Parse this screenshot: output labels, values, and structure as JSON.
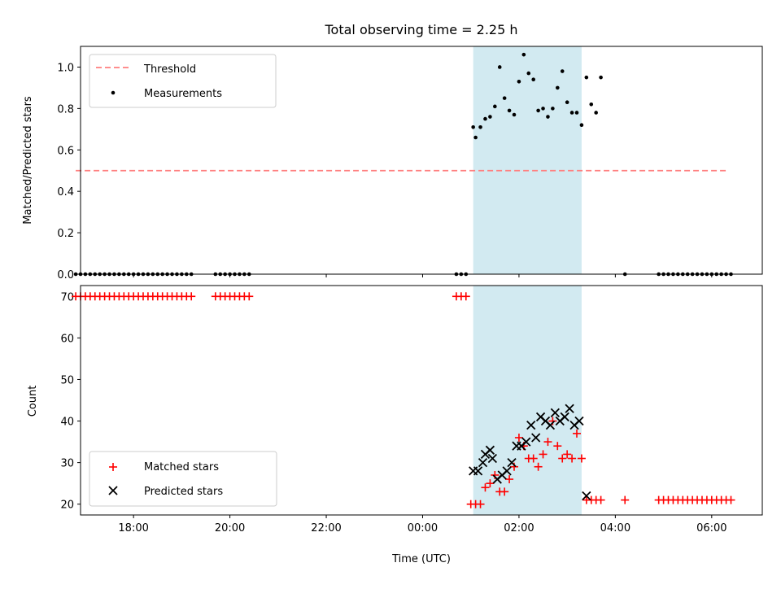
{
  "chart_data": [
    {
      "type": "scatter",
      "title": "Total observing time = 2.25 h",
      "xlabel": "",
      "ylabel": "Matched/Predicted stars",
      "ylim": [
        0,
        1.1
      ],
      "yticks": [
        "0.0",
        "0.2",
        "0.4",
        "0.6",
        "0.8",
        "1.0"
      ],
      "x_is_hours_since_midnight": true,
      "xlim": [
        -7.1,
        7.05
      ],
      "shaded_span": [
        1.05,
        3.3
      ],
      "shaded_color": "#add8e6",
      "legend": {
        "position": "upper left",
        "entries": [
          "Threshold",
          "Measurements"
        ]
      },
      "series": [
        {
          "name": "Threshold",
          "kind": "dashed-line",
          "color": "#ff7f7f",
          "x": [
            -7.2,
            6.3
          ],
          "y": [
            0.5,
            0.5
          ]
        },
        {
          "name": "Measurements",
          "kind": "dots",
          "color": "#000000",
          "x": [
            -7.2,
            -7.1,
            -7.0,
            -6.9,
            -6.8,
            -6.7,
            -6.6,
            -6.5,
            -6.4,
            -6.3,
            -6.2,
            -6.1,
            -6.0,
            -5.9,
            -5.8,
            -5.7,
            -5.6,
            -5.5,
            -5.4,
            -5.3,
            -5.2,
            -5.1,
            -5.0,
            -4.9,
            -4.8,
            -4.3,
            -4.2,
            -4.1,
            -4.0,
            -3.9,
            -3.8,
            -3.7,
            -3.6,
            0.7,
            0.8,
            0.9,
            1.05,
            1.1,
            1.2,
            1.3,
            1.4,
            1.5,
            1.6,
            1.7,
            1.8,
            1.9,
            2.0,
            2.1,
            2.2,
            2.3,
            2.4,
            2.5,
            2.6,
            2.7,
            2.8,
            2.9,
            3.0,
            3.1,
            3.2,
            3.3,
            3.4,
            3.5,
            3.6,
            3.7,
            4.2,
            4.9,
            5.0,
            5.1,
            5.2,
            5.3,
            5.4,
            5.5,
            5.6,
            5.7,
            5.8,
            5.9,
            6.0,
            6.1,
            6.2,
            6.3,
            6.4
          ],
          "y": [
            0,
            0,
            0,
            0,
            0,
            0,
            0,
            0,
            0,
            0,
            0,
            0,
            0,
            0,
            0,
            0,
            0,
            0,
            0,
            0,
            0,
            0,
            0,
            0,
            0,
            0,
            0,
            0,
            0,
            0,
            0,
            0,
            0,
            0,
            0,
            0,
            0.71,
            0.66,
            0.71,
            0.75,
            0.76,
            0.81,
            1.0,
            0.85,
            0.79,
            0.77,
            0.93,
            1.06,
            0.97,
            0.94,
            0.79,
            0.8,
            0.76,
            0.8,
            0.9,
            0.98,
            0.83,
            0.78,
            0.78,
            0.72,
            0.95,
            0.82,
            0.78,
            0.95,
            0,
            0,
            0,
            0,
            0,
            0,
            0,
            0,
            0,
            0,
            0,
            0,
            0,
            0,
            0,
            0,
            0
          ]
        }
      ]
    },
    {
      "type": "scatter",
      "title": "",
      "xlabel": "Time (UTC)",
      "ylabel": "Count",
      "ylim": [
        17.4,
        72.6
      ],
      "yticks": [
        "20",
        "30",
        "40",
        "50",
        "60",
        "70"
      ],
      "x_is_hours_since_midnight": true,
      "xlim": [
        -7.1,
        7.05
      ],
      "xticks": [
        "18:00",
        "20:00",
        "22:00",
        "00:00",
        "02:00",
        "04:00",
        "06:00"
      ],
      "shaded_span": [
        1.05,
        3.3
      ],
      "shaded_color": "#add8e6",
      "legend": {
        "position": "lower left",
        "entries": [
          "Matched stars",
          "Predicted stars"
        ]
      },
      "series": [
        {
          "name": "Matched stars",
          "kind": "plus",
          "color": "#ff0000",
          "x": [
            -7.2,
            -7.1,
            -7.0,
            -6.9,
            -6.8,
            -6.7,
            -6.6,
            -6.5,
            -6.4,
            -6.3,
            -6.2,
            -6.1,
            -6.0,
            -5.9,
            -5.8,
            -5.7,
            -5.6,
            -5.5,
            -5.4,
            -5.3,
            -5.2,
            -5.1,
            -5.0,
            -4.9,
            -4.8,
            -4.3,
            -4.2,
            -4.1,
            -4.0,
            -3.9,
            -3.8,
            -3.7,
            -3.6,
            0.7,
            0.8,
            0.9,
            1.0,
            1.1,
            1.2,
            1.3,
            1.4,
            1.5,
            1.6,
            1.7,
            1.8,
            1.9,
            2.0,
            2.1,
            2.2,
            2.3,
            2.4,
            2.5,
            2.6,
            2.7,
            2.8,
            2.9,
            3.0,
            3.1,
            3.2,
            3.3,
            3.4,
            3.5,
            3.6,
            3.7,
            4.2,
            4.9,
            5.0,
            5.1,
            5.2,
            5.3,
            5.4,
            5.5,
            5.6,
            5.7,
            5.8,
            5.9,
            6.0,
            6.1,
            6.2,
            6.3,
            6.4
          ],
          "y": [
            70,
            70,
            70,
            70,
            70,
            70,
            70,
            70,
            70,
            70,
            70,
            70,
            70,
            70,
            70,
            70,
            70,
            70,
            70,
            70,
            70,
            70,
            70,
            70,
            70,
            70,
            70,
            70,
            70,
            70,
            70,
            70,
            70,
            70,
            70,
            70,
            20,
            20,
            20,
            24,
            25,
            27,
            23,
            23,
            26,
            29,
            36,
            34,
            31,
            31,
            29,
            32,
            35,
            40,
            34,
            31,
            32,
            31,
            37,
            31,
            21,
            21,
            21,
            21,
            21,
            21,
            21,
            21,
            21,
            21,
            21,
            21,
            21,
            21,
            21,
            21,
            21,
            21,
            21,
            21,
            21
          ]
        },
        {
          "name": "Predicted stars",
          "kind": "x",
          "color": "#000000",
          "x": [
            1.05,
            1.15,
            1.25,
            1.3,
            1.4,
            1.45,
            1.55,
            1.65,
            1.75,
            1.85,
            1.95,
            2.05,
            2.15,
            2.25,
            2.35,
            2.45,
            2.55,
            2.65,
            2.75,
            2.85,
            2.95,
            3.05,
            3.15,
            3.25,
            3.4
          ],
          "y": [
            28,
            28,
            30,
            32,
            33,
            31,
            26,
            27,
            28,
            30,
            34,
            34,
            35,
            39,
            36,
            41,
            40,
            39,
            42,
            40,
            41,
            43,
            39,
            40,
            22
          ]
        }
      ]
    }
  ]
}
